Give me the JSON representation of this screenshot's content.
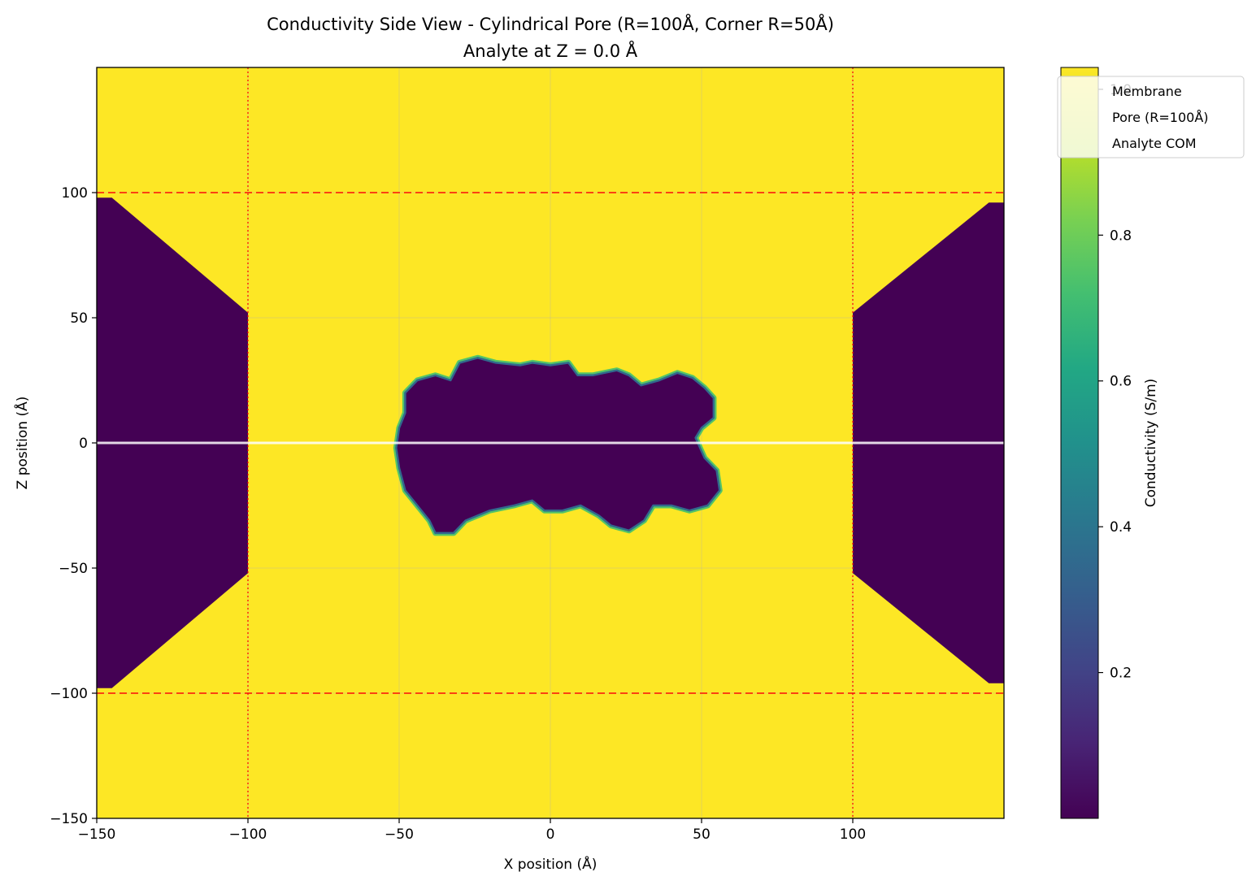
{
  "chart_data": {
    "type": "heatmap",
    "title": "Conductivity Side View - Cylindrical Pore (R=100Å, Corner R=50Å)",
    "subtitle": "Analyte at Z = 0.0 Å",
    "xlabel": "X position (Å)",
    "ylabel": "Z position (Å)",
    "xlim": [
      -150,
      150
    ],
    "ylim": [
      -150,
      150
    ],
    "x_ticks": [
      -150,
      -100,
      -50,
      0,
      50,
      100
    ],
    "x_tick_labels": [
      "−150",
      "−100",
      "−50",
      "0",
      "50",
      "100"
    ],
    "y_ticks": [
      -150,
      -100,
      -50,
      0,
      50,
      100
    ],
    "y_tick_labels": [
      "−150",
      "−100",
      "−50",
      "0",
      "50",
      "100"
    ],
    "grid": true,
    "colormap": "viridis",
    "colorbar": {
      "label": "Conductivity (S/m)",
      "range": [
        0.0,
        1.03
      ],
      "ticks": [
        0.2,
        0.4,
        0.6,
        0.8,
        1.0
      ],
      "tick_labels": [
        "0.2",
        "0.4",
        "0.6",
        "0.8",
        "1.0"
      ]
    },
    "legend": {
      "placement": "upper-right",
      "entries": [
        "Membrane",
        "Pore (R=100Å)",
        "Analyte COM"
      ]
    },
    "membrane": {
      "z_top": 100,
      "z_bottom": -100,
      "pore_radius": 100,
      "corner_radius": 50,
      "color": "#ff0000",
      "style": "dashed"
    },
    "pore_walls": {
      "x": [
        -100,
        100
      ],
      "color": "#ff0000",
      "style": "dotted"
    },
    "analyte_com": {
      "z": 0.0,
      "color": "#ffffff"
    },
    "regions": {
      "bulk_conductivity": 1.03,
      "membrane_conductivity": 0.0,
      "membrane_left_outline": [
        [
          -150,
          -98
        ],
        [
          -150,
          98
        ],
        [
          -145,
          98
        ],
        [
          -100,
          52
        ],
        [
          -100,
          -52
        ],
        [
          -145,
          -98
        ]
      ],
      "membrane_right_outline": [
        [
          150,
          -96
        ],
        [
          150,
          96
        ],
        [
          145,
          96
        ],
        [
          100,
          52
        ],
        [
          100,
          -52
        ],
        [
          145,
          -96
        ]
      ],
      "analyte_outline": [
        [
          -48,
          20
        ],
        [
          -44,
          25
        ],
        [
          -38,
          27
        ],
        [
          -33,
          25
        ],
        [
          -30,
          32
        ],
        [
          -24,
          34
        ],
        [
          -18,
          32
        ],
        [
          -10,
          31
        ],
        [
          -6,
          32
        ],
        [
          0,
          31
        ],
        [
          6,
          32
        ],
        [
          9,
          27
        ],
        [
          14,
          27
        ],
        [
          22,
          29
        ],
        [
          26,
          27
        ],
        [
          30,
          23
        ],
        [
          36,
          25
        ],
        [
          42,
          28
        ],
        [
          47,
          26
        ],
        [
          51,
          22
        ],
        [
          54,
          18
        ],
        [
          54,
          10
        ],
        [
          50,
          6
        ],
        [
          48,
          2
        ],
        [
          51,
          -6
        ],
        [
          55,
          -11
        ],
        [
          56,
          -19
        ],
        [
          52,
          -25
        ],
        [
          46,
          -27
        ],
        [
          40,
          -25
        ],
        [
          34,
          -25
        ],
        [
          31,
          -31
        ],
        [
          26,
          -35
        ],
        [
          20,
          -33
        ],
        [
          16,
          -29
        ],
        [
          10,
          -25
        ],
        [
          4,
          -27
        ],
        [
          -2,
          -27
        ],
        [
          -6,
          -23
        ],
        [
          -12,
          -25
        ],
        [
          -20,
          -27
        ],
        [
          -28,
          -31
        ],
        [
          -32,
          -36
        ],
        [
          -38,
          -36
        ],
        [
          -40,
          -31
        ],
        [
          -44,
          -25
        ],
        [
          -48,
          -19
        ],
        [
          -50,
          -10
        ],
        [
          -51,
          -2
        ],
        [
          -50,
          6
        ],
        [
          -48,
          12
        ]
      ],
      "analyte_interior_conductivity": 0.0,
      "analyte_edge_conductivity": 0.75
    }
  }
}
